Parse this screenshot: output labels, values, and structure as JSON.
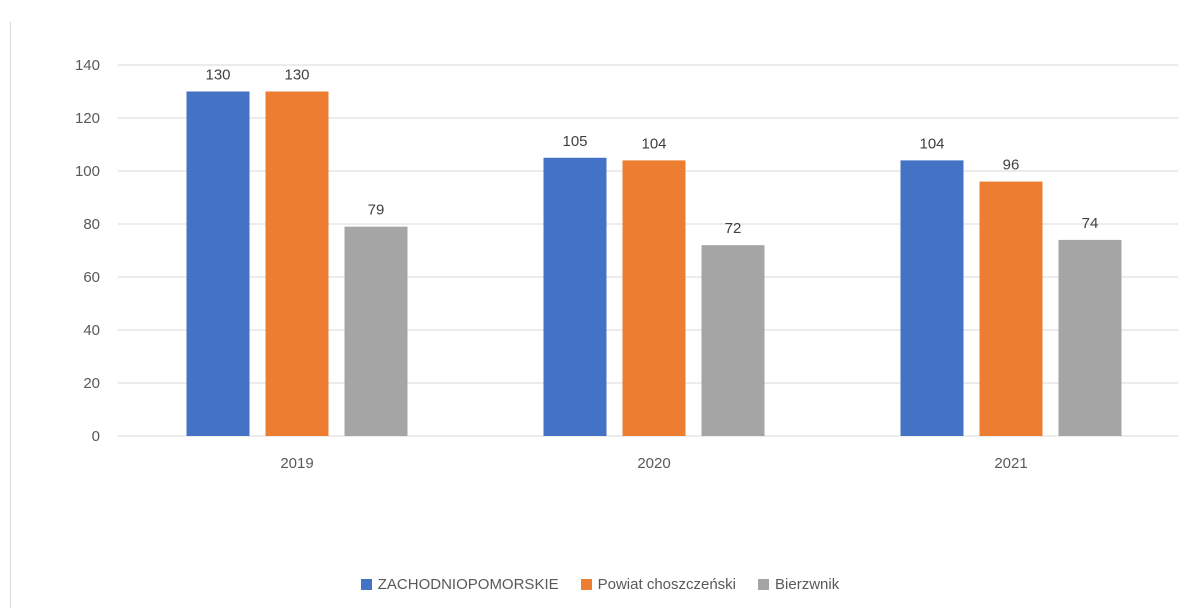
{
  "chart_data": {
    "type": "bar",
    "categories": [
      "2019",
      "2020",
      "2021"
    ],
    "series": [
      {
        "name": "ZACHODNIOPOMORSKIE",
        "values": [
          130,
          105,
          104
        ],
        "color": "#4472C4"
      },
      {
        "name": "Powiat choszczeński",
        "values": [
          130,
          104,
          96
        ],
        "color": "#ED7D31"
      },
      {
        "name": "Bierzwnik",
        "values": [
          79,
          72,
          74
        ],
        "color": "#A5A5A5"
      }
    ],
    "title": "",
    "xlabel": "",
    "ylabel": "",
    "ylim": [
      0,
      140
    ],
    "yticks": [
      "0",
      "20",
      "40",
      "60",
      "80",
      "100",
      "120",
      "140"
    ],
    "grid": true,
    "legend_position": "bottom",
    "gridline_color": "#d9d9d9"
  }
}
